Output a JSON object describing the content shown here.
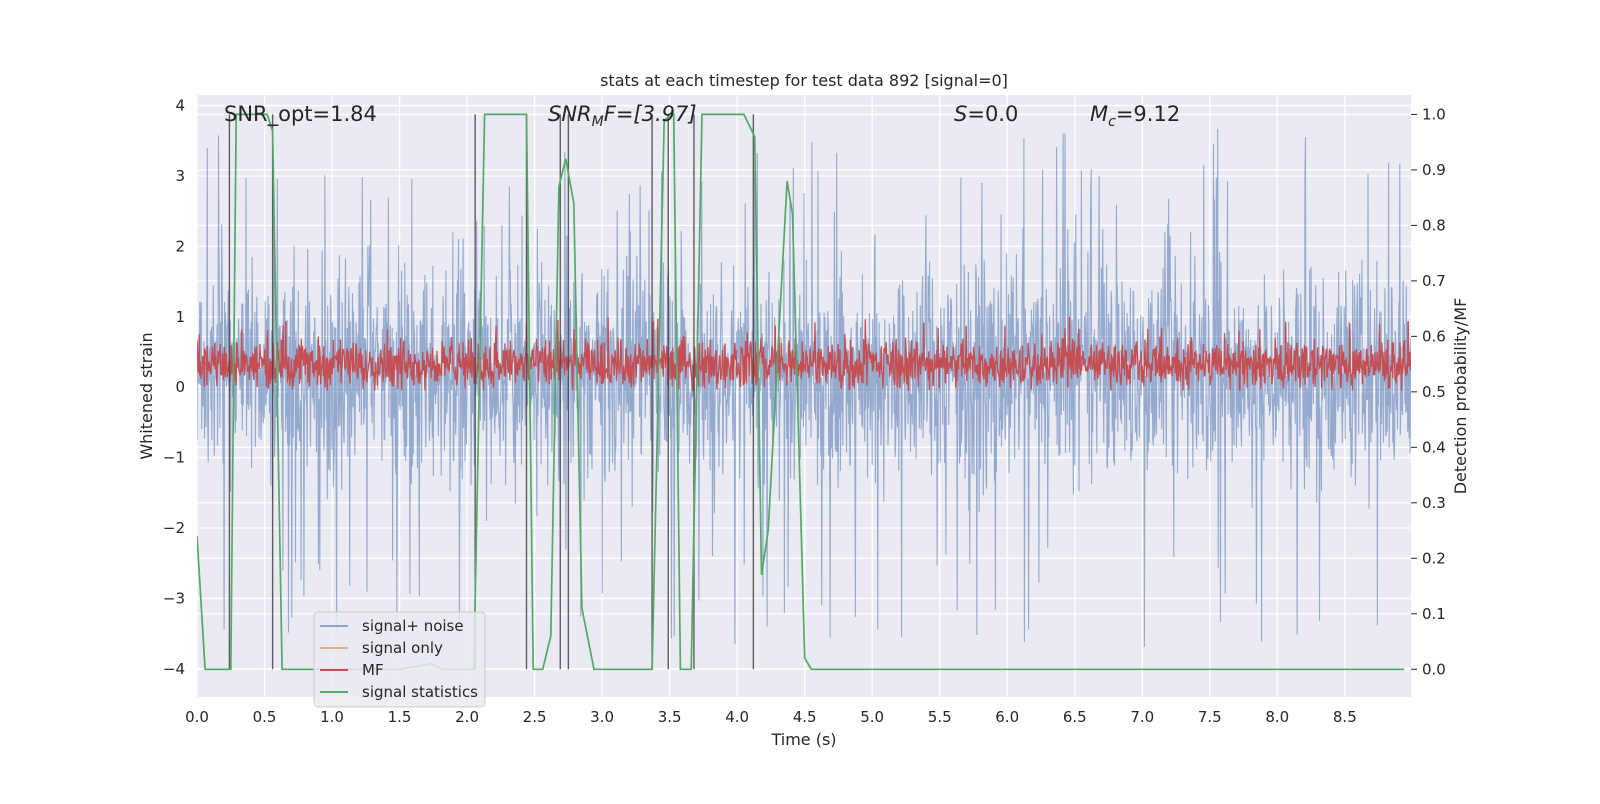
{
  "chart_data": {
    "type": "line",
    "title": "stats at each timestep for test data 892 [signal=0]",
    "xlabel": "Time (s)",
    "ylabel": "Whitened strain",
    "ylabel_right": "Detection probability/MF",
    "xlim": [
      0.0,
      8.99
    ],
    "ylim": [
      -4.4,
      4.15
    ],
    "ylim_right": [
      -0.05,
      1.035
    ],
    "grid": true,
    "legend_placement": "lower-left",
    "x_ticks": [
      "0.0",
      "0.5",
      "1.0",
      "1.5",
      "2.0",
      "2.5",
      "3.0",
      "3.5",
      "4.0",
      "4.5",
      "5.0",
      "5.5",
      "6.0",
      "6.5",
      "7.0",
      "7.5",
      "8.0",
      "8.5"
    ],
    "y_ticks": [
      "−4",
      "−3",
      "−2",
      "−1",
      "0",
      "1",
      "2",
      "3",
      "4"
    ],
    "y_ticks_right": [
      "0.0",
      "0.1",
      "0.2",
      "0.3",
      "0.4",
      "0.5",
      "0.6",
      "0.7",
      "0.8",
      "0.9",
      "1.0"
    ],
    "annotations": {
      "snr_opt": "SNR_opt=1.84",
      "snr_mf_name": "SNR",
      "snr_mf_sub": "M",
      "snr_mf_rest": "F=[3.97]",
      "s_name": "S",
      "s_rest": "=0.0",
      "mc_name": "M",
      "mc_sub": "c",
      "mc_rest": "=9.12"
    },
    "series": [
      {
        "name": "signal+ noise",
        "color": "#4c72b0",
        "axis": "left",
        "noise_envelope": {
          "x_range": [
            0.0,
            8.99
          ],
          "typical_range": [
            -1.9,
            2.3
          ],
          "extreme_range": [
            -3.7,
            3.8
          ]
        }
      },
      {
        "name": "signal only",
        "color": "#dd8452",
        "axis": "left",
        "x": [],
        "y": []
      },
      {
        "name": "MF",
        "color": "#c44e52",
        "axis": "left",
        "noise_envelope": {
          "x_range": [
            0.0,
            8.99
          ],
          "typical_range": [
            0.0,
            0.65
          ],
          "extreme_range": [
            -0.05,
            1.0
          ]
        }
      },
      {
        "name": "signal statistics",
        "color": "#55a868",
        "axis": "right",
        "x": [
          0.0,
          0.06,
          0.25,
          0.29,
          0.52,
          0.56,
          0.63,
          0.9,
          1.2,
          1.5,
          1.74,
          1.82,
          2.05,
          2.13,
          2.44,
          2.49,
          2.56,
          2.62,
          2.68,
          2.73,
          2.79,
          2.85,
          2.94,
          3.37,
          3.46,
          3.53,
          3.58,
          3.66,
          3.74,
          4.05,
          4.13,
          4.18,
          4.23,
          4.37,
          4.41,
          4.5,
          4.55,
          4.6,
          5.0,
          6.0,
          7.0,
          8.0,
          8.94
        ],
        "y": [
          0.24,
          0.0,
          0.0,
          1.0,
          1.0,
          0.97,
          0.0,
          0.0,
          0.0,
          0.0,
          0.01,
          0.0,
          0.0,
          1.0,
          1.0,
          0.0,
          0.0,
          0.06,
          0.87,
          0.92,
          0.84,
          0.11,
          0.0,
          0.0,
          0.99,
          1.0,
          0.0,
          0.0,
          1.0,
          1.0,
          0.96,
          0.17,
          0.25,
          0.88,
          0.82,
          0.02,
          0.0,
          0.0,
          0.0,
          0.0,
          0.0,
          0.0,
          0.0
        ]
      }
    ],
    "vertical_lines_x": [
      0.24,
      0.56,
      2.06,
      2.44,
      2.69,
      2.75,
      3.37,
      3.49,
      3.68,
      4.12
    ]
  }
}
